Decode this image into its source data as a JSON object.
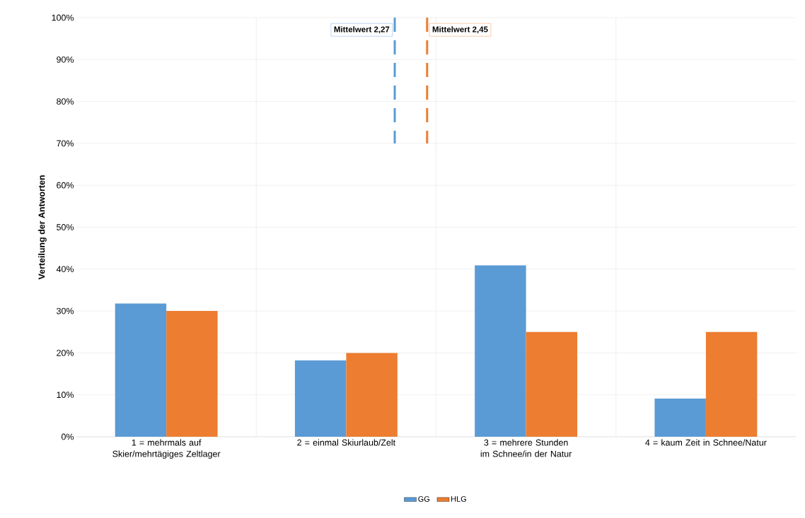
{
  "chart_data": {
    "type": "bar",
    "ylabel": "Verteilung der Antworten",
    "x": [
      1,
      2,
      3,
      4
    ],
    "xlim": [
      0.5,
      4.5
    ],
    "xticks": [
      {
        "value": 1,
        "label": "1 = mehrmals auf Skier/mehrtägiges Zeltlager"
      },
      {
        "value": 2,
        "label": "2 = einmal Skiurlaub/Zelt"
      },
      {
        "value": 3,
        "label": "3 = mehrere Stunden im Schnee/in der Natur"
      },
      {
        "value": 4,
        "label": "4 = kaum Zeit in Schnee/Natur"
      }
    ],
    "series": [
      {
        "name": "GG",
        "color": "#5b9bd5",
        "values": [
          31.8,
          18.2,
          40.9,
          9.1
        ]
      },
      {
        "name": "HLG",
        "color": "#ed7d31",
        "values": [
          30,
          20,
          25,
          25
        ]
      }
    ],
    "ylim": [
      0,
      100
    ],
    "yticks": [
      {
        "value": 0,
        "label": "0%"
      },
      {
        "value": 10,
        "label": "10%"
      },
      {
        "value": 20,
        "label": "20%"
      },
      {
        "value": 30,
        "label": "30%"
      },
      {
        "value": 40,
        "label": "40%"
      },
      {
        "value": 50,
        "label": "50%"
      },
      {
        "value": 60,
        "label": "60%"
      },
      {
        "value": 70,
        "label": "70%"
      },
      {
        "value": 80,
        "label": "80%"
      },
      {
        "value": 90,
        "label": "90%"
      },
      {
        "value": 100,
        "label": "100%"
      }
    ],
    "ref_lines": [
      {
        "axis": "x",
        "value": 2.27,
        "label": "Mittelwert 2,27",
        "color": "#5b9bd5",
        "line_style": "dashed"
      },
      {
        "axis": "x",
        "value": 2.45,
        "label": "Mittelwert 2,45",
        "color": "#ed7d31",
        "line_style": "dashed"
      }
    ],
    "grid": true,
    "legend": "bottom"
  }
}
